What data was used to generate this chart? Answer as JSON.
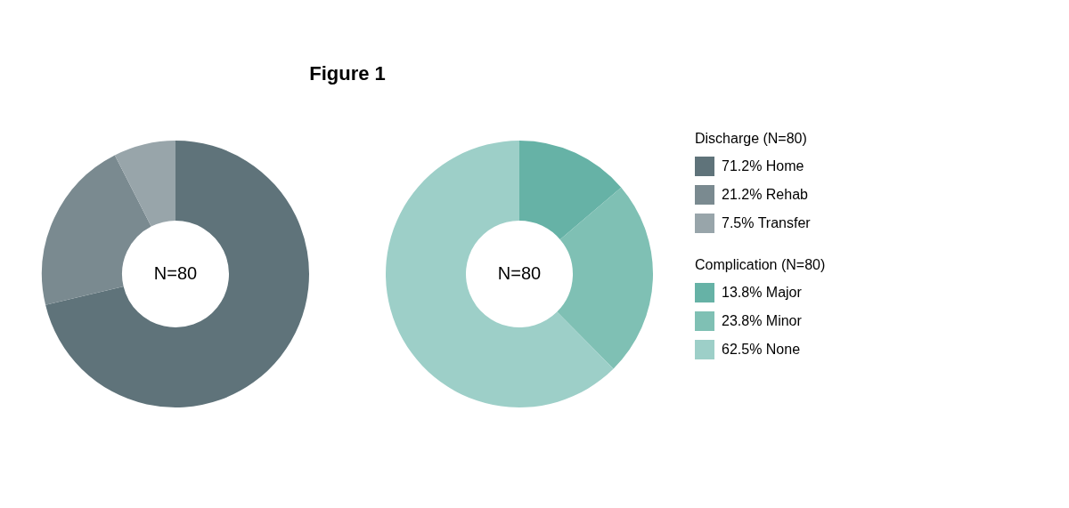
{
  "chart_data": [
    {
      "type": "donut",
      "title": "Figure 1",
      "legend_title": "Discharge (N=80)",
      "categories": [
        "71.2% Home",
        "21.2% Rehab",
        "7.5% Transfer"
      ],
      "values": [
        71.2,
        21.2,
        7.5
      ],
      "colors": [
        "#5f737a",
        "#7a8a90",
        "#98a5aa"
      ],
      "annotations": [
        "N=80"
      ],
      "legend": "right"
    },
    {
      "type": "donut",
      "legend_title": "Complication (N=80)",
      "categories": [
        "13.8% Major",
        "23.8% Minor",
        "62.5% None"
      ],
      "values": [
        13.8,
        23.8,
        62.5
      ],
      "colors": [
        "#66b2a6",
        "#7fc0b4",
        "#9dcfc8"
      ],
      "annotations": [
        "N=80"
      ],
      "legend": "right"
    }
  ]
}
